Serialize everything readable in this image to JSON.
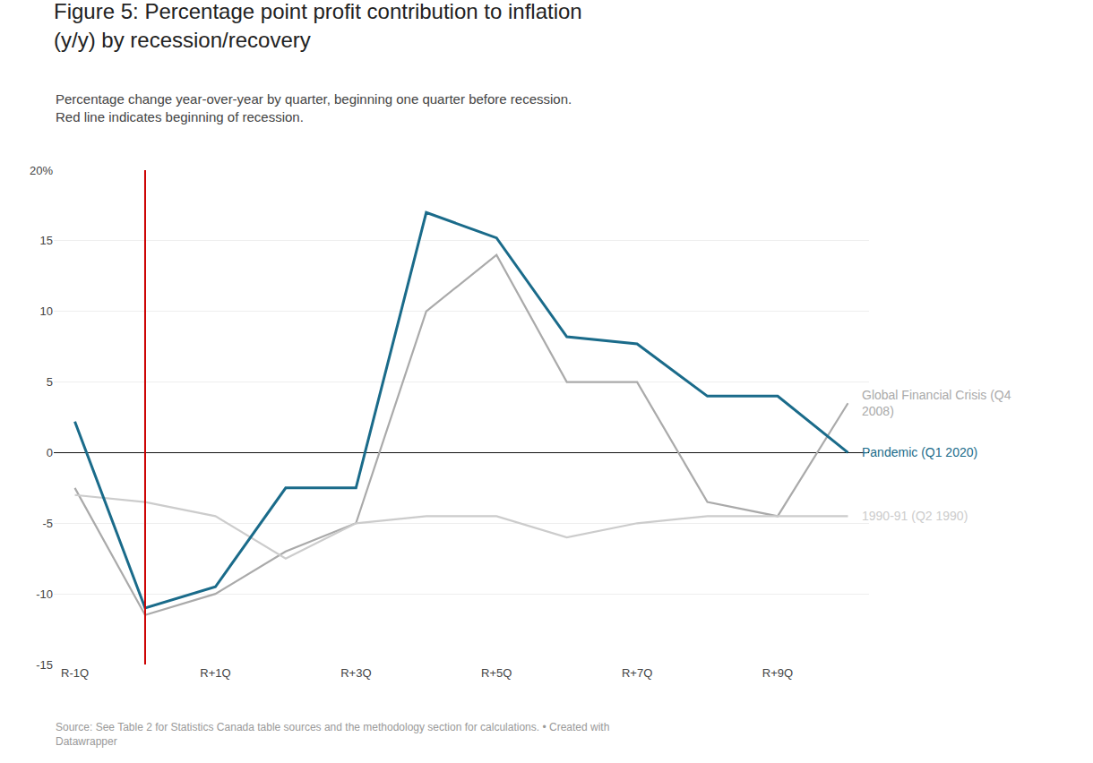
{
  "chart_data": {
    "type": "line",
    "title": "Figure 5: Percentage point profit contribution to inflation\n(y/y) by recession/recovery",
    "subtitle": "Percentage change year-over-year by quarter, beginning one quarter before recession.\nRed line indicates beginning of recession.",
    "annotations": [
      "Source: See Table 2 for Statistics Canada table sources and the methodology section for calculations. • Created with\nDatawrapper"
    ],
    "categories": [
      "R-1Q",
      null,
      "R+1Q",
      null,
      "R+3Q",
      null,
      "R+5Q",
      null,
      "R+7Q",
      null,
      "R+9Q",
      null
    ],
    "series": [
      {
        "name": "Global Financial Crisis (Q4\n2008)",
        "color": "#aaaaaa",
        "values": [
          -2.5,
          -11.5,
          -10.0,
          -7.0,
          -5.0,
          10.0,
          14.0,
          5.0,
          5.0,
          -3.5,
          -4.5,
          3.5
        ]
      },
      {
        "name": "1990-91 (Q2 1990)",
        "color": "#cccccc",
        "values": [
          -3.0,
          -3.5,
          -4.5,
          -7.5,
          -5.0,
          -4.5,
          -4.5,
          -6.0,
          -5.0,
          -4.5,
          -4.5,
          -4.5
        ]
      },
      {
        "name": "Pandemic (Q1 2020)",
        "color": "#1a6b8a",
        "values": [
          2.2,
          -11.0,
          -9.5,
          -2.5,
          -2.5,
          17.0,
          15.2,
          8.2,
          7.7,
          4.0,
          4.0,
          0.0
        ]
      }
    ],
    "ylim": [
      -15,
      20
    ],
    "yticks": [
      -15,
      -10,
      -5,
      0,
      5,
      10,
      15,
      {
        "value": 20,
        "label": "20%"
      }
    ],
    "grid": true,
    "vline": {
      "x": 1,
      "color": "#cc0000"
    }
  }
}
